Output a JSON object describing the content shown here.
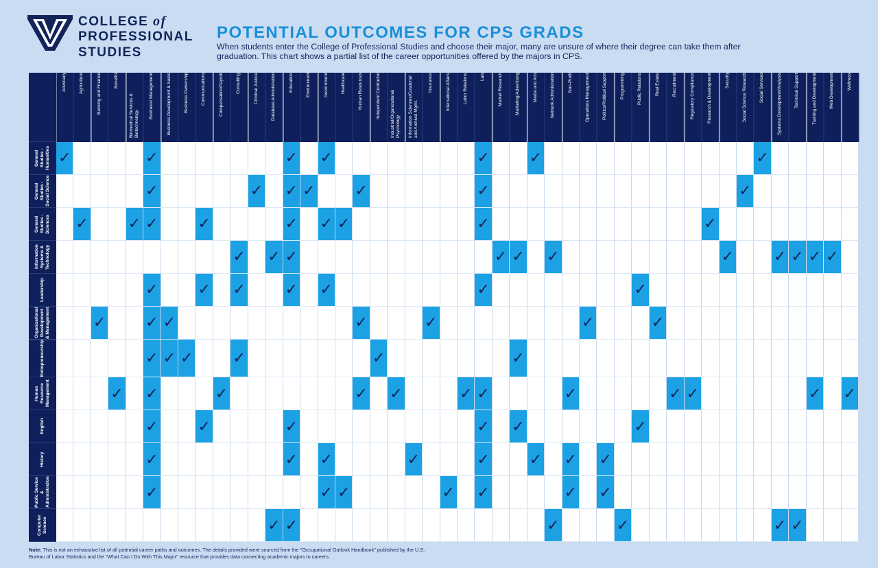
{
  "header": {
    "logo": {
      "line1": "COLLEGE",
      "line1_italic": "of",
      "line2": "PROFESSIONAL",
      "line3": "STUDIES"
    },
    "title": "POTENTIAL OUTCOMES FOR CPS GRADS",
    "description": "When students enter the College of Professional Studies and choose their major, many are unsure of where their degree can take them after graduation. This chart shows a partial list of the career opportunities offered by the majors in CPS."
  },
  "table": {
    "columns": [
      "Advocacy",
      "Agriculture",
      "Banking and Finance",
      "Benefits",
      "Biomedical Services & Biotechnology",
      "Business/ Management",
      "Business Development & Sales",
      "Business Ownership",
      "Communications",
      "Compensation/Payroll",
      "Consulting",
      "Criminal Justice",
      "Database Administration",
      "Education",
      "Environment",
      "Government",
      "Healthcare",
      "Human Resources",
      "Independent Contractor",
      "Industrial/Organizational Psychology",
      "Information Sciences/Curatorial and Archival Mgmt.",
      "Insurance",
      "International Affairs",
      "Labor Relations",
      "Law",
      "Market Research",
      "Marketing/Advertising",
      "Media and Arts",
      "Network Administration",
      "Non-Profit",
      "Operations Management",
      "Politics/Political Support",
      "Programming",
      "Public Relations",
      "Real Estate",
      "Recruitment",
      "Regulatory Compliance",
      "Research & Development",
      "Security",
      "Social Science Research",
      "Social Services",
      "Systems Development/Analysis",
      "Technical Support",
      "Training and Development",
      "Web Development",
      "Wellness"
    ],
    "rows": [
      {
        "label": "General Studies - Humanities",
        "cells": [
          "✓",
          null,
          null,
          null,
          null,
          "✓",
          null,
          null,
          null,
          null,
          null,
          null,
          null,
          "✓",
          null,
          "✓",
          null,
          null,
          null,
          null,
          null,
          null,
          null,
          null,
          "✓",
          null,
          null,
          "✓",
          null,
          null,
          null,
          null,
          null,
          null,
          null,
          null,
          null,
          null,
          null,
          null,
          "✓",
          null,
          null,
          null,
          null,
          null
        ]
      },
      {
        "label": "General Studies - Social Science",
        "cells": [
          null,
          null,
          null,
          null,
          null,
          "✓",
          null,
          null,
          null,
          null,
          null,
          "✓",
          null,
          "✓",
          "✓",
          null,
          null,
          "✓",
          null,
          null,
          null,
          null,
          null,
          null,
          "✓",
          null,
          null,
          null,
          null,
          null,
          null,
          null,
          null,
          null,
          null,
          null,
          null,
          null,
          null,
          "✓",
          null,
          null,
          null,
          null,
          null,
          null
        ]
      },
      {
        "label": "General Studies - Sciences",
        "cells": [
          null,
          "✓",
          null,
          null,
          "✓",
          "✓",
          null,
          null,
          "✓",
          null,
          null,
          null,
          null,
          "✓",
          null,
          "✓",
          "✓",
          null,
          null,
          null,
          null,
          null,
          null,
          null,
          "✓",
          null,
          null,
          null,
          null,
          null,
          null,
          null,
          null,
          null,
          null,
          null,
          null,
          "✓",
          null,
          null,
          null,
          null,
          null,
          null,
          null,
          null
        ]
      },
      {
        "label": "Information Systems & Technology",
        "cells": [
          null,
          null,
          null,
          null,
          null,
          null,
          null,
          null,
          null,
          null,
          "✓",
          null,
          "✓",
          "✓",
          null,
          null,
          null,
          null,
          null,
          null,
          null,
          null,
          null,
          null,
          null,
          "✓",
          "✓",
          null,
          "✓",
          null,
          null,
          null,
          null,
          null,
          null,
          null,
          null,
          null,
          "✓",
          null,
          null,
          "✓",
          "✓",
          "✓",
          "✓",
          null
        ]
      },
      {
        "label": "Leadership",
        "cells": [
          null,
          null,
          null,
          null,
          null,
          "✓",
          null,
          null,
          "✓",
          null,
          "✓",
          null,
          null,
          "✓",
          null,
          "✓",
          null,
          null,
          null,
          null,
          null,
          null,
          null,
          null,
          "✓",
          null,
          null,
          null,
          null,
          null,
          null,
          null,
          null,
          "✓",
          null,
          null,
          null,
          null,
          null,
          null,
          null,
          null,
          null,
          null,
          null,
          null
        ]
      },
      {
        "label": "Organizational Development & Management",
        "cells": [
          null,
          null,
          "✓",
          null,
          null,
          "✓",
          "✓",
          null,
          null,
          null,
          null,
          null,
          null,
          null,
          null,
          null,
          null,
          "✓",
          null,
          null,
          null,
          "✓",
          null,
          null,
          null,
          null,
          null,
          null,
          null,
          null,
          "✓",
          null,
          null,
          null,
          "✓",
          null,
          null,
          null,
          null,
          null,
          null,
          null,
          null,
          null,
          null,
          null
        ]
      },
      {
        "label": "Entrepreneurship",
        "cells": [
          null,
          null,
          null,
          null,
          null,
          "✓",
          "✓",
          "✓",
          null,
          null,
          "✓",
          null,
          null,
          null,
          null,
          null,
          null,
          null,
          "✓",
          null,
          null,
          null,
          null,
          null,
          null,
          null,
          "✓",
          null,
          null,
          null,
          null,
          null,
          null,
          null,
          null,
          null,
          null,
          null,
          null,
          null,
          null,
          null,
          null,
          null,
          null,
          null
        ]
      },
      {
        "label": "Human Resource Management",
        "cells": [
          null,
          null,
          null,
          "✓",
          null,
          "✓",
          null,
          null,
          null,
          "✓",
          null,
          null,
          null,
          null,
          null,
          null,
          null,
          "✓",
          null,
          "✓",
          null,
          null,
          null,
          "✓",
          "✓",
          null,
          null,
          null,
          null,
          "✓",
          null,
          null,
          null,
          null,
          null,
          "✓",
          "✓",
          null,
          null,
          null,
          null,
          null,
          null,
          "✓",
          null,
          "✓"
        ]
      },
      {
        "label": "English",
        "cells": [
          null,
          null,
          null,
          null,
          null,
          "✓",
          null,
          null,
          "✓",
          null,
          null,
          null,
          null,
          "✓",
          null,
          null,
          null,
          null,
          null,
          null,
          null,
          null,
          null,
          null,
          "✓",
          null,
          "✓",
          null,
          null,
          null,
          null,
          null,
          null,
          "✓",
          null,
          null,
          null,
          null,
          null,
          null,
          null,
          null,
          null,
          null,
          null,
          null
        ]
      },
      {
        "label": "History",
        "cells": [
          null,
          null,
          null,
          null,
          null,
          "✓",
          null,
          null,
          null,
          null,
          null,
          null,
          null,
          "✓",
          null,
          "✓",
          null,
          null,
          null,
          null,
          "✓",
          null,
          null,
          null,
          "✓",
          null,
          null,
          "✓",
          null,
          "✓",
          null,
          "✓",
          null,
          null,
          null,
          null,
          null,
          null,
          null,
          null,
          null,
          null,
          null,
          null,
          null,
          null
        ]
      },
      {
        "label": "Public Service & Administration",
        "cells": [
          null,
          null,
          null,
          null,
          null,
          "✓",
          null,
          null,
          null,
          null,
          null,
          null,
          null,
          null,
          null,
          "✓",
          "✓",
          null,
          null,
          null,
          null,
          null,
          "✓",
          null,
          "✓",
          null,
          null,
          null,
          null,
          "✓",
          null,
          "✓",
          null,
          null,
          null,
          null,
          null,
          null,
          null,
          null,
          null,
          null,
          null,
          null,
          null,
          null
        ]
      },
      {
        "label": "Computer Science",
        "cells": [
          null,
          null,
          null,
          null,
          null,
          null,
          null,
          null,
          null,
          null,
          null,
          null,
          "✓",
          "✓",
          null,
          null,
          null,
          null,
          null,
          null,
          null,
          null,
          null,
          null,
          null,
          null,
          null,
          null,
          "✓",
          null,
          null,
          null,
          "✓",
          null,
          null,
          null,
          null,
          null,
          null,
          null,
          null,
          "✓",
          "✓",
          null,
          null,
          null
        ]
      }
    ]
  },
  "note": {
    "label": "Note:",
    "text": "This is not an exhaustive list of all potential career paths and outcomes. The details provided were sourced from the \"Occupational Outlook Handbook\" published by the U.S. Bureau of Labor Statistics and the \"What Can I Do With This Major\" resource that provides data connecting academic majors to careers."
  }
}
